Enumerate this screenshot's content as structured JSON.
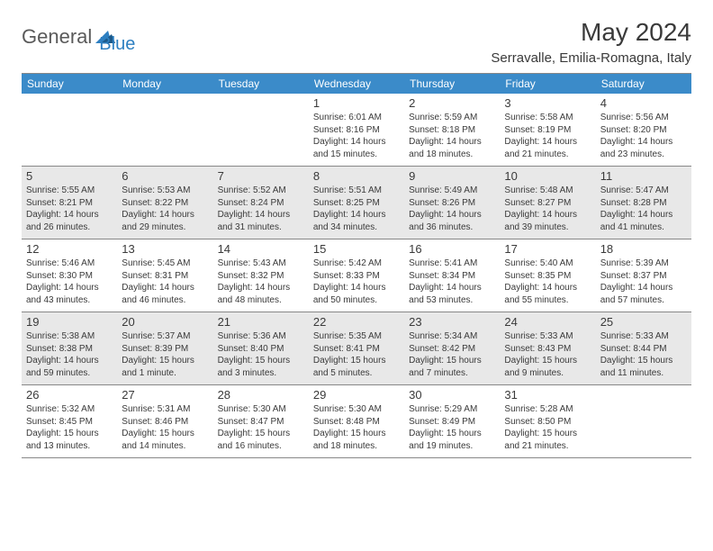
{
  "logo": {
    "text1": "General",
    "text2": "Blue"
  },
  "title": "May 2024",
  "location": "Serravalle, Emilia-Romagna, Italy",
  "colors": {
    "header_bg": "#3b8bc9",
    "header_text": "#ffffff",
    "alt_row_bg": "#e8e8e8",
    "text": "#3a3a3a",
    "logo_gray": "#5a5a5a",
    "logo_blue": "#2d7fc1",
    "border": "#888888"
  },
  "day_names": [
    "Sunday",
    "Monday",
    "Tuesday",
    "Wednesday",
    "Thursday",
    "Friday",
    "Saturday"
  ],
  "weeks": [
    {
      "alt": false,
      "days": [
        null,
        null,
        null,
        {
          "n": "1",
          "sr": "6:01 AM",
          "ss": "8:16 PM",
          "dl": "14 hours and 15 minutes."
        },
        {
          "n": "2",
          "sr": "5:59 AM",
          "ss": "8:18 PM",
          "dl": "14 hours and 18 minutes."
        },
        {
          "n": "3",
          "sr": "5:58 AM",
          "ss": "8:19 PM",
          "dl": "14 hours and 21 minutes."
        },
        {
          "n": "4",
          "sr": "5:56 AM",
          "ss": "8:20 PM",
          "dl": "14 hours and 23 minutes."
        }
      ]
    },
    {
      "alt": true,
      "days": [
        {
          "n": "5",
          "sr": "5:55 AM",
          "ss": "8:21 PM",
          "dl": "14 hours and 26 minutes."
        },
        {
          "n": "6",
          "sr": "5:53 AM",
          "ss": "8:22 PM",
          "dl": "14 hours and 29 minutes."
        },
        {
          "n": "7",
          "sr": "5:52 AM",
          "ss": "8:24 PM",
          "dl": "14 hours and 31 minutes."
        },
        {
          "n": "8",
          "sr": "5:51 AM",
          "ss": "8:25 PM",
          "dl": "14 hours and 34 minutes."
        },
        {
          "n": "9",
          "sr": "5:49 AM",
          "ss": "8:26 PM",
          "dl": "14 hours and 36 minutes."
        },
        {
          "n": "10",
          "sr": "5:48 AM",
          "ss": "8:27 PM",
          "dl": "14 hours and 39 minutes."
        },
        {
          "n": "11",
          "sr": "5:47 AM",
          "ss": "8:28 PM",
          "dl": "14 hours and 41 minutes."
        }
      ]
    },
    {
      "alt": false,
      "days": [
        {
          "n": "12",
          "sr": "5:46 AM",
          "ss": "8:30 PM",
          "dl": "14 hours and 43 minutes."
        },
        {
          "n": "13",
          "sr": "5:45 AM",
          "ss": "8:31 PM",
          "dl": "14 hours and 46 minutes."
        },
        {
          "n": "14",
          "sr": "5:43 AM",
          "ss": "8:32 PM",
          "dl": "14 hours and 48 minutes."
        },
        {
          "n": "15",
          "sr": "5:42 AM",
          "ss": "8:33 PM",
          "dl": "14 hours and 50 minutes."
        },
        {
          "n": "16",
          "sr": "5:41 AM",
          "ss": "8:34 PM",
          "dl": "14 hours and 53 minutes."
        },
        {
          "n": "17",
          "sr": "5:40 AM",
          "ss": "8:35 PM",
          "dl": "14 hours and 55 minutes."
        },
        {
          "n": "18",
          "sr": "5:39 AM",
          "ss": "8:37 PM",
          "dl": "14 hours and 57 minutes."
        }
      ]
    },
    {
      "alt": true,
      "days": [
        {
          "n": "19",
          "sr": "5:38 AM",
          "ss": "8:38 PM",
          "dl": "14 hours and 59 minutes."
        },
        {
          "n": "20",
          "sr": "5:37 AM",
          "ss": "8:39 PM",
          "dl": "15 hours and 1 minute."
        },
        {
          "n": "21",
          "sr": "5:36 AM",
          "ss": "8:40 PM",
          "dl": "15 hours and 3 minutes."
        },
        {
          "n": "22",
          "sr": "5:35 AM",
          "ss": "8:41 PM",
          "dl": "15 hours and 5 minutes."
        },
        {
          "n": "23",
          "sr": "5:34 AM",
          "ss": "8:42 PM",
          "dl": "15 hours and 7 minutes."
        },
        {
          "n": "24",
          "sr": "5:33 AM",
          "ss": "8:43 PM",
          "dl": "15 hours and 9 minutes."
        },
        {
          "n": "25",
          "sr": "5:33 AM",
          "ss": "8:44 PM",
          "dl": "15 hours and 11 minutes."
        }
      ]
    },
    {
      "alt": false,
      "days": [
        {
          "n": "26",
          "sr": "5:32 AM",
          "ss": "8:45 PM",
          "dl": "15 hours and 13 minutes."
        },
        {
          "n": "27",
          "sr": "5:31 AM",
          "ss": "8:46 PM",
          "dl": "15 hours and 14 minutes."
        },
        {
          "n": "28",
          "sr": "5:30 AM",
          "ss": "8:47 PM",
          "dl": "15 hours and 16 minutes."
        },
        {
          "n": "29",
          "sr": "5:30 AM",
          "ss": "8:48 PM",
          "dl": "15 hours and 18 minutes."
        },
        {
          "n": "30",
          "sr": "5:29 AM",
          "ss": "8:49 PM",
          "dl": "15 hours and 19 minutes."
        },
        {
          "n": "31",
          "sr": "5:28 AM",
          "ss": "8:50 PM",
          "dl": "15 hours and 21 minutes."
        },
        null
      ]
    }
  ],
  "labels": {
    "sunrise": "Sunrise:",
    "sunset": "Sunset:",
    "daylight": "Daylight:"
  }
}
